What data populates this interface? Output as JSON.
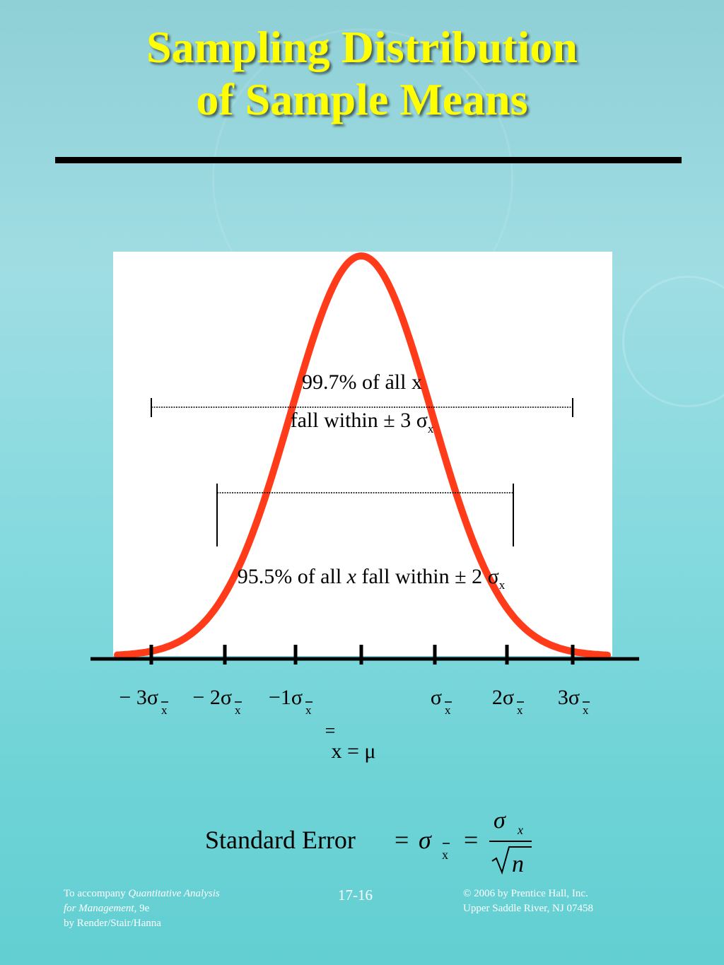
{
  "title_lines": [
    "Sampling Distribution",
    "of Sample Means"
  ],
  "labels": {
    "upper_annotation_line1": "99.7% of all x",
    "upper_annotation_line2_prefix": "fall within ± 3 σ",
    "upper_annotation_line2_sub": "x",
    "lower_annotation_prefix": "95.5% of all ",
    "lower_annotation_var": "x",
    "lower_annotation_middle": " fall within ± 2 σ",
    "lower_annotation_sub": "x"
  },
  "ticks": [
    {
      "coef": "− 3σ",
      "sub": "x"
    },
    {
      "coef": "− 2σ",
      "sub": "x"
    },
    {
      "coef": "−1σ",
      "sub": "x"
    },
    {
      "coef": "",
      "sub": ""
    },
    {
      "coef": "σ",
      "sub": "x"
    },
    {
      "coef": "2σ",
      "sub": "x"
    },
    {
      "coef": "3σ",
      "sub": "x"
    }
  ],
  "center_label": {
    "eq_top": "=",
    "text": "x = μ"
  },
  "formula": {
    "lhs": "Standard Error",
    "eq": "=",
    "sigma": "σ",
    "sub": "x",
    "numerator": "σ",
    "numerator_sub": "x",
    "denominator": "n"
  },
  "footer": {
    "left_line1_prefix": "To accompany ",
    "left_line1_italic": "Quantitative Analysis",
    "left_line2_italic": "for Management,",
    "left_line2_suffix": " 9e",
    "left_line3": "by Render/Stair/Hanna",
    "page_number": "17-16",
    "right_line1": "© 2006 by Prentice Hall, Inc.",
    "right_line2": "Upper Saddle River,  NJ 07458"
  },
  "colors": {
    "title": "#ffff00",
    "curve": "#ff3b1a",
    "axis": "#000000",
    "panel": "#ffffff"
  }
}
